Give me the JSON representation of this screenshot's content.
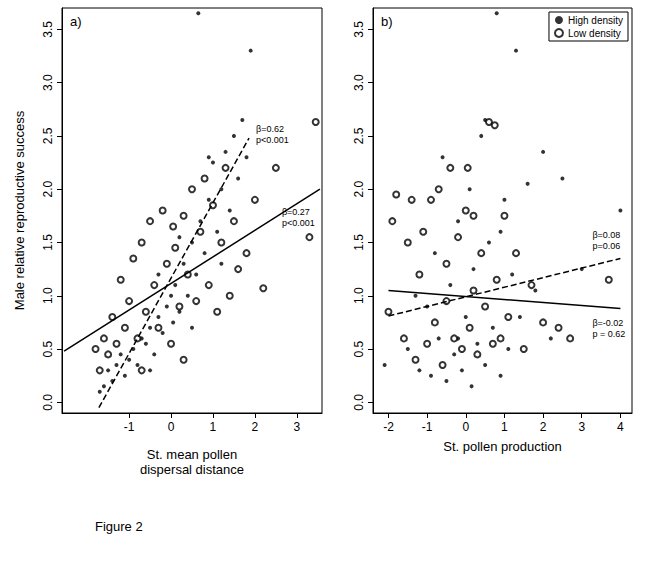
{
  "chart_data": [
    {
      "type": "scatter",
      "title": "a)",
      "x_label": "St. mean pollen\ndispersal distance",
      "y_label": "Male relative reproductive success",
      "xlim": [
        -2.6,
        3.6
      ],
      "xticks": [
        -1,
        0,
        1,
        2,
        3
      ],
      "ylim": [
        -0.1,
        3.7
      ],
      "yticks": [
        {
          "value": 0,
          "label": "0.0"
        },
        0.5,
        {
          "value": 1,
          "label": "1.0"
        },
        1.5,
        {
          "value": 2,
          "label": "2.0"
        },
        2.5,
        {
          "value": 3,
          "label": "3.0"
        },
        3.5
      ],
      "series": [
        {
          "name": "High density",
          "type": "scatter",
          "marker": "filled",
          "color": "#000000",
          "x": [
            -1.6,
            -1.5,
            -1.4,
            -1.3,
            -1.2,
            -1.1,
            -1.0,
            -0.9,
            -0.8,
            -0.7,
            -0.6,
            -0.5,
            -0.4,
            -0.3,
            -0.2,
            -0.1,
            0,
            0.05,
            0.1,
            0.2,
            0.3,
            0.4,
            0.5,
            0.6,
            0.65,
            0.7,
            0.8,
            0.9,
            1.0,
            1.1,
            1.2,
            1.3,
            1.4,
            1.5,
            1.6,
            1.7,
            1.8,
            1.9,
            0.9,
            0.2,
            -0.3,
            -1.7,
            0.5,
            1.2,
            -0.5
          ],
          "values": [
            0.15,
            0.3,
            0.2,
            0.35,
            0.45,
            0.25,
            0.4,
            0.5,
            0.35,
            0.6,
            0.55,
            0.7,
            0.45,
            0.8,
            0.65,
            0.9,
            1.0,
            0.75,
            1.1,
            0.85,
            1.3,
            1.0,
            1.5,
            1.2,
            3.65,
            1.7,
            1.4,
            1.9,
            2.25,
            1.6,
            2.0,
            2.35,
            1.8,
            2.5,
            2.1,
            2.65,
            2.3,
            3.3,
            2.3,
            1.55,
            1.2,
            0.1,
            0.7,
            1.3,
            0.3
          ]
        },
        {
          "name": "Low density",
          "type": "scatter",
          "marker": "open",
          "color": "#000000",
          "x": [
            -1.8,
            -1.7,
            -1.6,
            -1.5,
            -1.4,
            -1.3,
            -1.2,
            -1.1,
            -1.0,
            -0.9,
            -0.8,
            -0.7,
            -0.6,
            -0.5,
            -0.4,
            -0.3,
            -0.2,
            -0.1,
            0,
            0.05,
            0.1,
            0.2,
            0.3,
            0.4,
            0.5,
            0.6,
            0.7,
            0.8,
            0.9,
            1.0,
            1.1,
            1.2,
            1.3,
            1.4,
            1.5,
            1.6,
            1.8,
            2.0,
            2.2,
            2.5,
            3.3,
            3.45,
            -0.7,
            0.3
          ],
          "values": [
            0.5,
            0.3,
            0.6,
            0.45,
            0.8,
            0.55,
            1.15,
            0.7,
            0.95,
            1.35,
            0.6,
            1.5,
            0.85,
            1.7,
            1.1,
            0.7,
            1.8,
            1.3,
            0.55,
            1.65,
            1.45,
            0.9,
            1.75,
            1.2,
            2.0,
            0.95,
            1.6,
            2.1,
            1.1,
            1.85,
            0.85,
            1.5,
            2.2,
            1.0,
            1.7,
            1.25,
            1.4,
            1.9,
            1.07,
            2.2,
            1.55,
            2.63,
            0.3,
            0.4
          ]
        },
        {
          "name": "High density",
          "type": "line",
          "line_style": "dashed",
          "color": "#000000",
          "x": [
            -1.72,
            1.86
          ],
          "values": [
            -0.05,
            2.48
          ],
          "annotation": [
            "β=0.62",
            "p<0.001"
          ]
        },
        {
          "name": "Low density",
          "type": "line",
          "line_style": "solid",
          "color": "#000000",
          "x": [
            -2.55,
            3.55
          ],
          "values": [
            0.48,
            2.0
          ],
          "annotation": [
            "β=0.27",
            "p<0.001"
          ]
        }
      ]
    },
    {
      "type": "scatter",
      "title": "b)",
      "x_label": "St. pollen production",
      "legend": "upper right",
      "xlim": [
        -2.4,
        4.3
      ],
      "xticks": [
        -2,
        -1,
        0,
        1,
        2,
        3,
        4
      ],
      "ylim": [
        -0.1,
        3.7
      ],
      "yticks": [
        {
          "value": 0,
          "label": "0.0"
        },
        0.5,
        {
          "value": 1,
          "label": "1.0"
        },
        1.5,
        {
          "value": 2,
          "label": "2.0"
        },
        2.5,
        {
          "value": 3,
          "label": "3.0"
        },
        3.5
      ],
      "series": [
        {
          "name": "High density",
          "type": "scatter",
          "marker": "filled",
          "color": "#000000",
          "x": [
            -2.1,
            -1.5,
            -1.2,
            -1,
            -0.9,
            -0.8,
            -0.7,
            -0.6,
            -0.5,
            -0.4,
            -0.3,
            -0.2,
            -0.1,
            0,
            0.1,
            0.15,
            0.2,
            0.3,
            0.4,
            0.5,
            0.6,
            0.7,
            0.8,
            0.9,
            1.0,
            1.1,
            1.2,
            1.3,
            1.4,
            1.6,
            1.8,
            2.0,
            2.2,
            2.5,
            3.0,
            4.0,
            -1.3,
            0.5,
            -0.2,
            0.9
          ],
          "values": [
            0.35,
            0.5,
            0.3,
            0.9,
            0.25,
            1.4,
            0.6,
            2.3,
            0.2,
            1.1,
            0.45,
            1.7,
            0.3,
            0.8,
            2.0,
            0.15,
            1.25,
            0.55,
            2.5,
            0.35,
            1.5,
            0.7,
            3.65,
            0.25,
            1.9,
            0.5,
            1.2,
            3.3,
            0.8,
            2.05,
            1.05,
            2.35,
            0.6,
            2.1,
            1.25,
            1.8,
            1.0,
            2.65,
            0.6,
            1.6
          ]
        },
        {
          "name": "Low density",
          "type": "scatter",
          "marker": "open",
          "color": "#000000",
          "x": [
            -2.0,
            -1.9,
            -1.8,
            -1.6,
            -1.5,
            -1.4,
            -1.3,
            -1.2,
            -1.1,
            -1.0,
            -0.9,
            -0.8,
            -0.7,
            -0.6,
            -0.5,
            -0.4,
            -0.3,
            -0.2,
            -0.1,
            0,
            0.05,
            0.1,
            0.2,
            0.3,
            0.4,
            0.5,
            0.6,
            0.7,
            0.75,
            0.8,
            0.9,
            1.0,
            1.1,
            1.3,
            1.5,
            1.7,
            2.0,
            2.4,
            2.7,
            3.7,
            -0.5,
            0.2
          ],
          "values": [
            0.85,
            1.7,
            1.95,
            0.6,
            1.5,
            1.9,
            0.4,
            1.2,
            1.6,
            0.55,
            1.9,
            0.75,
            2.0,
            0.35,
            1.3,
            2.2,
            0.6,
            1.55,
            0.5,
            1.8,
            2.2,
            0.7,
            1.75,
            0.45,
            1.4,
            0.9,
            2.63,
            0.55,
            2.6,
            1.15,
            0.6,
            1.75,
            0.8,
            1.4,
            0.5,
            1.1,
            0.75,
            0.7,
            0.6,
            1.15,
            0.95,
            1.05
          ]
        },
        {
          "name": "High density",
          "type": "line",
          "line_style": "dashed",
          "color": "#000000",
          "x": [
            -2,
            4
          ],
          "values": [
            0.81,
            1.35
          ],
          "annotation": [
            "β=0.08",
            "p=0.06"
          ]
        },
        {
          "name": "Low density",
          "type": "line",
          "line_style": "solid",
          "color": "#000000",
          "x": [
            -2,
            4
          ],
          "values": [
            1.05,
            0.88
          ],
          "annotation": [
            "β=-0.02",
            "p = 0.62"
          ]
        }
      ]
    }
  ],
  "caption": "Figure 2"
}
